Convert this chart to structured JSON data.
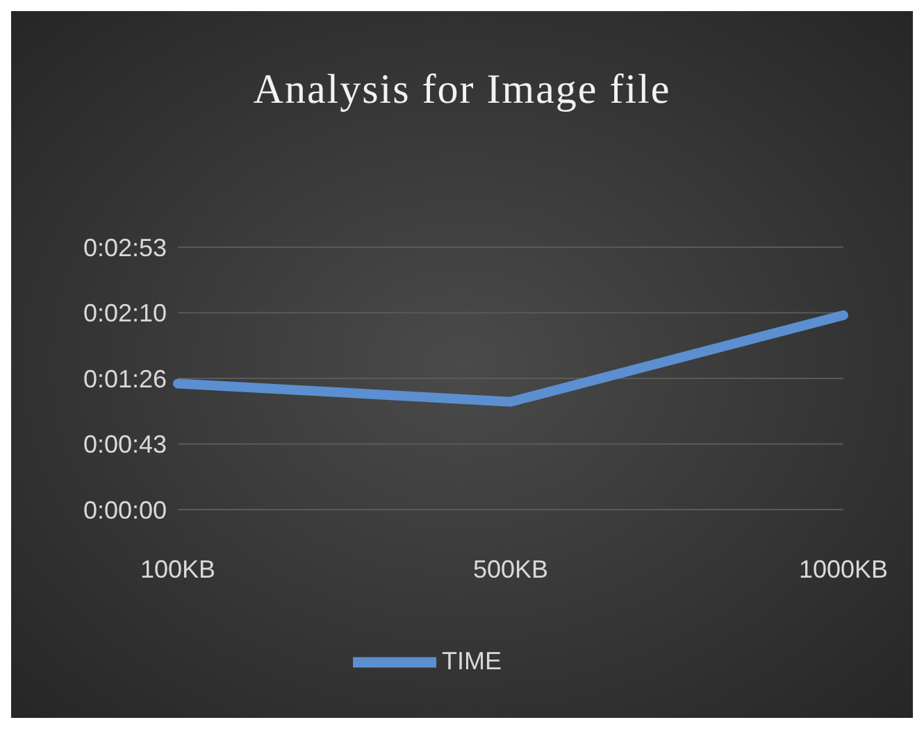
{
  "chart_data": {
    "type": "line",
    "title": "Analysis for Image file",
    "categories": [
      "100KB",
      "500KB",
      "1000KB"
    ],
    "series": [
      {
        "name": "TIME",
        "color": "#5b8fd0",
        "values": [
          83,
          71,
          128
        ]
      }
    ],
    "ylim": [
      0,
      172.8
    ],
    "yticks": [
      {
        "value": 0,
        "label": "0:00:00"
      },
      {
        "value": 43.2,
        "label": "0:00:43"
      },
      {
        "value": 86.4,
        "label": "0:01:26"
      },
      {
        "value": 129.6,
        "label": "0:02:10"
      },
      {
        "value": 172.8,
        "label": "0:02:53"
      }
    ],
    "grid": "y",
    "legend": "bottom",
    "marker": "none",
    "line_style": "solid"
  }
}
